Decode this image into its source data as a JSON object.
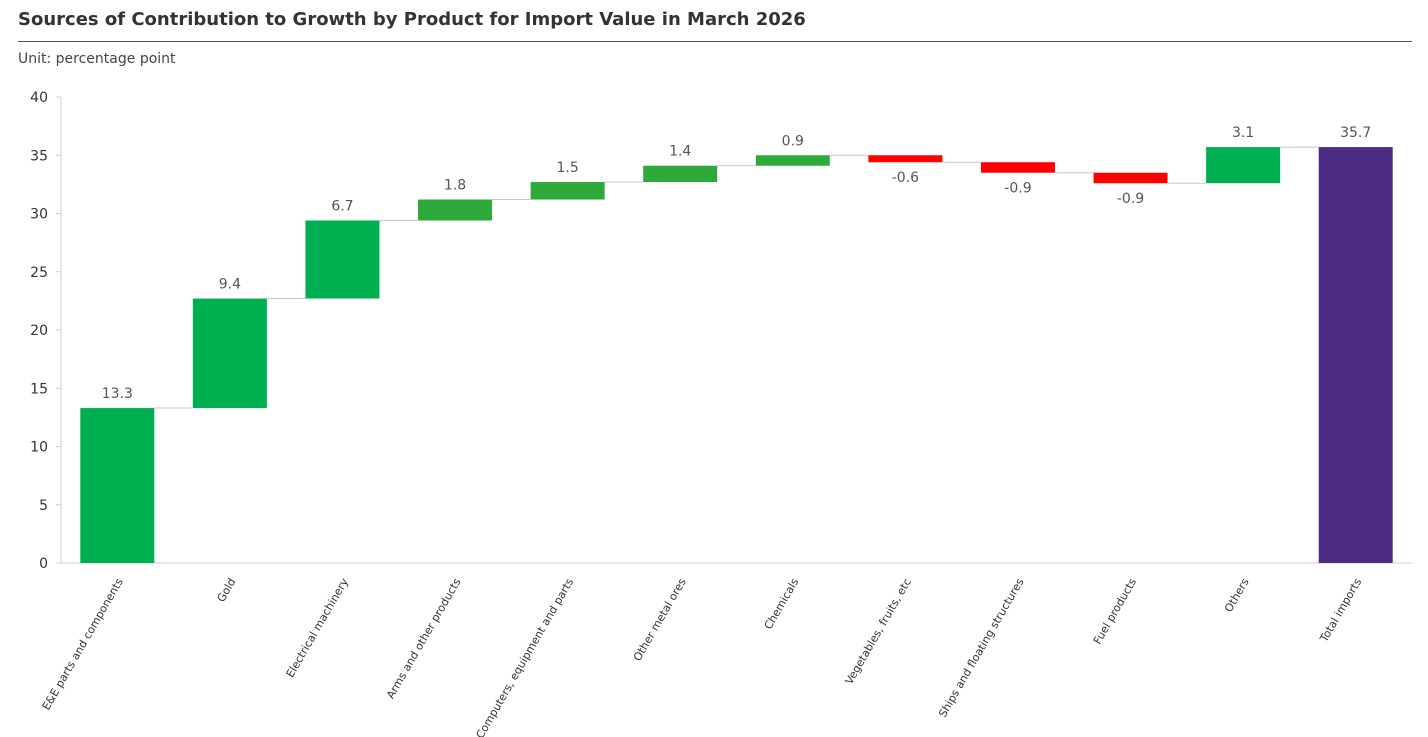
{
  "title": "Sources of Contribution to Growth by Product for Import Value  in March 2026",
  "unit": "Unit: percentage point",
  "colors": {
    "positive": "#00b050",
    "positive_alt": "#2eaa3a",
    "negative": "#ff0000",
    "total": "#4b2c82",
    "connector": "#c8c8c8",
    "axis": "#cfcfcf"
  },
  "chart_data": {
    "type": "bar",
    "subtype": "waterfall",
    "categories": [
      "E&E parts and components",
      "Gold",
      "Electrical machinery",
      "Arms and other products",
      "Computers, equipment and parts",
      "Other metal ores",
      "Chemicals",
      "Vegetables, fruits, etc",
      "Ships and floating structures",
      "Fuel products",
      "Others",
      "Total imports"
    ],
    "values": [
      13.3,
      9.4,
      6.7,
      1.8,
      1.5,
      1.4,
      0.9,
      -0.6,
      -0.9,
      -0.9,
      3.1,
      35.7
    ],
    "data_labels": [
      "13.3",
      "9.4",
      "6.7",
      "1.8",
      "1.5",
      "1.4",
      "0.9",
      "-0.6",
      "-0.9",
      "-0.9",
      "3.1",
      "35.7"
    ],
    "is_total": [
      false,
      false,
      false,
      false,
      false,
      false,
      false,
      false,
      false,
      false,
      false,
      true
    ],
    "y_ticks": [
      "0",
      "5",
      "10",
      "15",
      "20",
      "25",
      "30",
      "35",
      "40"
    ],
    "ylim": [
      0,
      40
    ],
    "grid": false,
    "legend": "none"
  }
}
